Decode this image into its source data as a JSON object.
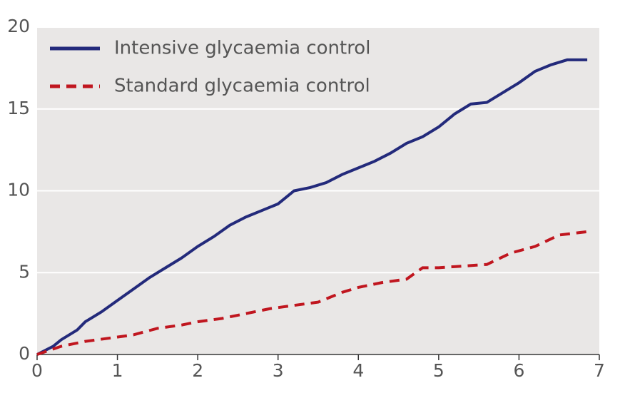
{
  "chart_data": {
    "type": "line",
    "xlim": [
      0,
      7
    ],
    "xticks": [
      0,
      1,
      2,
      3,
      4,
      5,
      6,
      7
    ],
    "ylim": [
      0,
      20
    ],
    "yticks": [
      0,
      5,
      10,
      15,
      20
    ],
    "grid": true,
    "legend": "top-left",
    "series": [
      {
        "name": "Intensive glycaemia control",
        "color": "#232a7b",
        "dash": "solid",
        "x": [
          0,
          0.2,
          0.3,
          0.5,
          0.6,
          0.8,
          1,
          1.2,
          1.4,
          1.6,
          1.8,
          2,
          2.2,
          2.4,
          2.6,
          2.8,
          3,
          3.2,
          3.4,
          3.6,
          3.8,
          4,
          4.2,
          4.4,
          4.6,
          4.8,
          5,
          5.2,
          5.4,
          5.6,
          5.8,
          6,
          6.2,
          6.4,
          6.6,
          6.85
        ],
        "values": [
          0,
          0.5,
          0.9,
          1.5,
          2,
          2.6,
          3.3,
          4,
          4.7,
          5.3,
          5.9,
          6.6,
          7.2,
          7.9,
          8.4,
          8.8,
          9.2,
          10,
          10.2,
          10.5,
          11,
          11.4,
          11.8,
          12.3,
          12.9,
          13.3,
          13.9,
          14.7,
          15.3,
          15.4,
          16,
          16.6,
          17.3,
          17.7,
          18,
          18
        ]
      },
      {
        "name": "Standard glycaemia control",
        "color": "#c0161f",
        "dash": "dashed",
        "x": [
          0,
          0.3,
          0.6,
          0.9,
          1.2,
          1.5,
          1.8,
          2,
          2.3,
          2.6,
          2.9,
          3.2,
          3.5,
          3.8,
          4,
          4.3,
          4.6,
          4.8,
          5,
          5.3,
          5.6,
          5.9,
          6.2,
          6.5,
          6.85
        ],
        "values": [
          0,
          0.5,
          0.8,
          1,
          1.2,
          1.6,
          1.8,
          2,
          2.2,
          2.5,
          2.8,
          3,
          3.2,
          3.8,
          4.1,
          4.4,
          4.6,
          5.3,
          5.3,
          5.4,
          5.5,
          6.2,
          6.6,
          7.3,
          7.5
        ]
      }
    ]
  }
}
